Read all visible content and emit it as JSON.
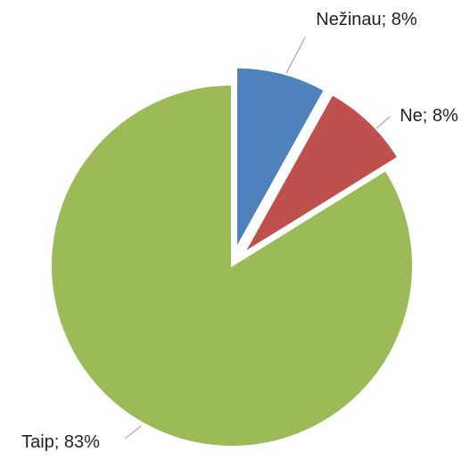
{
  "chart_data": {
    "type": "pie",
    "values": [
      8,
      8,
      83
    ],
    "value_labels": [
      "Nežinau; 8%",
      "Ne; 8%",
      "Taip; 83%"
    ],
    "colors": [
      "#4f81bd",
      "#c0504d",
      "#9bbb59"
    ],
    "exploded": [
      true,
      true,
      false
    ]
  }
}
